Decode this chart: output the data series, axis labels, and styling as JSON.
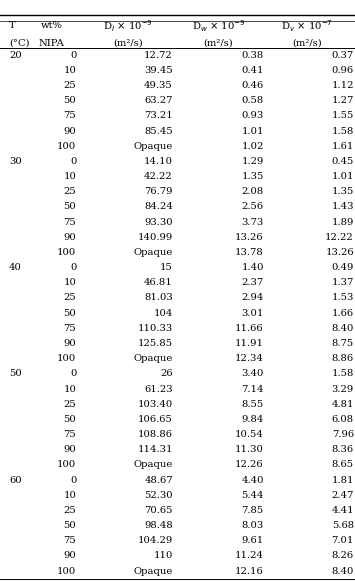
{
  "rows": [
    [
      "20",
      "0",
      "12.72",
      "0.38",
      "0.37"
    ],
    [
      "",
      "10",
      "39.45",
      "0.41",
      "0.96"
    ],
    [
      "",
      "25",
      "49.35",
      "0.46",
      "1.12"
    ],
    [
      "",
      "50",
      "63.27",
      "0.58",
      "1.27"
    ],
    [
      "",
      "75",
      "73.21",
      "0.93",
      "1.55"
    ],
    [
      "",
      "90",
      "85.45",
      "1.01",
      "1.58"
    ],
    [
      "",
      "100",
      "Opaque",
      "1.02",
      "1.61"
    ],
    [
      "30",
      "0",
      "14.10",
      "1.29",
      "0.45"
    ],
    [
      "",
      "10",
      "42.22",
      "1.35",
      "1.01"
    ],
    [
      "",
      "25",
      "76.79",
      "2.08",
      "1.35"
    ],
    [
      "",
      "50",
      "84.24",
      "2.56",
      "1.43"
    ],
    [
      "",
      "75",
      "93.30",
      "3.73",
      "1.89"
    ],
    [
      "",
      "90",
      "140.99",
      "13.26",
      "12.22"
    ],
    [
      "",
      "100",
      "Opaque",
      "13.78",
      "13.26"
    ],
    [
      "40",
      "0",
      "15",
      "1.40",
      "0.49"
    ],
    [
      "",
      "10",
      "46.81",
      "2.37",
      "1.37"
    ],
    [
      "",
      "25",
      "81.03",
      "2.94",
      "1.53"
    ],
    [
      "",
      "50",
      "104",
      "3.01",
      "1.66"
    ],
    [
      "",
      "75",
      "110.33",
      "11.66",
      "8.40"
    ],
    [
      "",
      "90",
      "125.85",
      "11.91",
      "8.75"
    ],
    [
      "",
      "100",
      "Opaque",
      "12.34",
      "8.86"
    ],
    [
      "50",
      "0",
      "26",
      "3.40",
      "1.58"
    ],
    [
      "",
      "10",
      "61.23",
      "7.14",
      "3.29"
    ],
    [
      "",
      "25",
      "103.40",
      "8.55",
      "4.81"
    ],
    [
      "",
      "50",
      "106.65",
      "9.84",
      "6.08"
    ],
    [
      "",
      "75",
      "108.86",
      "10.54",
      "7.96"
    ],
    [
      "",
      "90",
      "114.31",
      "11.30",
      "8.36"
    ],
    [
      "",
      "100",
      "Opaque",
      "12.26",
      "8.65"
    ],
    [
      "60",
      "0",
      "48.67",
      "4.40",
      "1.81"
    ],
    [
      "",
      "10",
      "52.30",
      "5.44",
      "2.47"
    ],
    [
      "",
      "25",
      "70.65",
      "7.85",
      "4.41"
    ],
    [
      "",
      "50",
      "98.48",
      "8.03",
      "5.68"
    ],
    [
      "",
      "75",
      "104.29",
      "9.61",
      "7.01"
    ],
    [
      "",
      "90",
      "110",
      "11.24",
      "8.26"
    ],
    [
      "",
      "100",
      "Opaque",
      "12.16",
      "8.40"
    ]
  ],
  "font_size": 7.2,
  "header_font_size": 7.2
}
